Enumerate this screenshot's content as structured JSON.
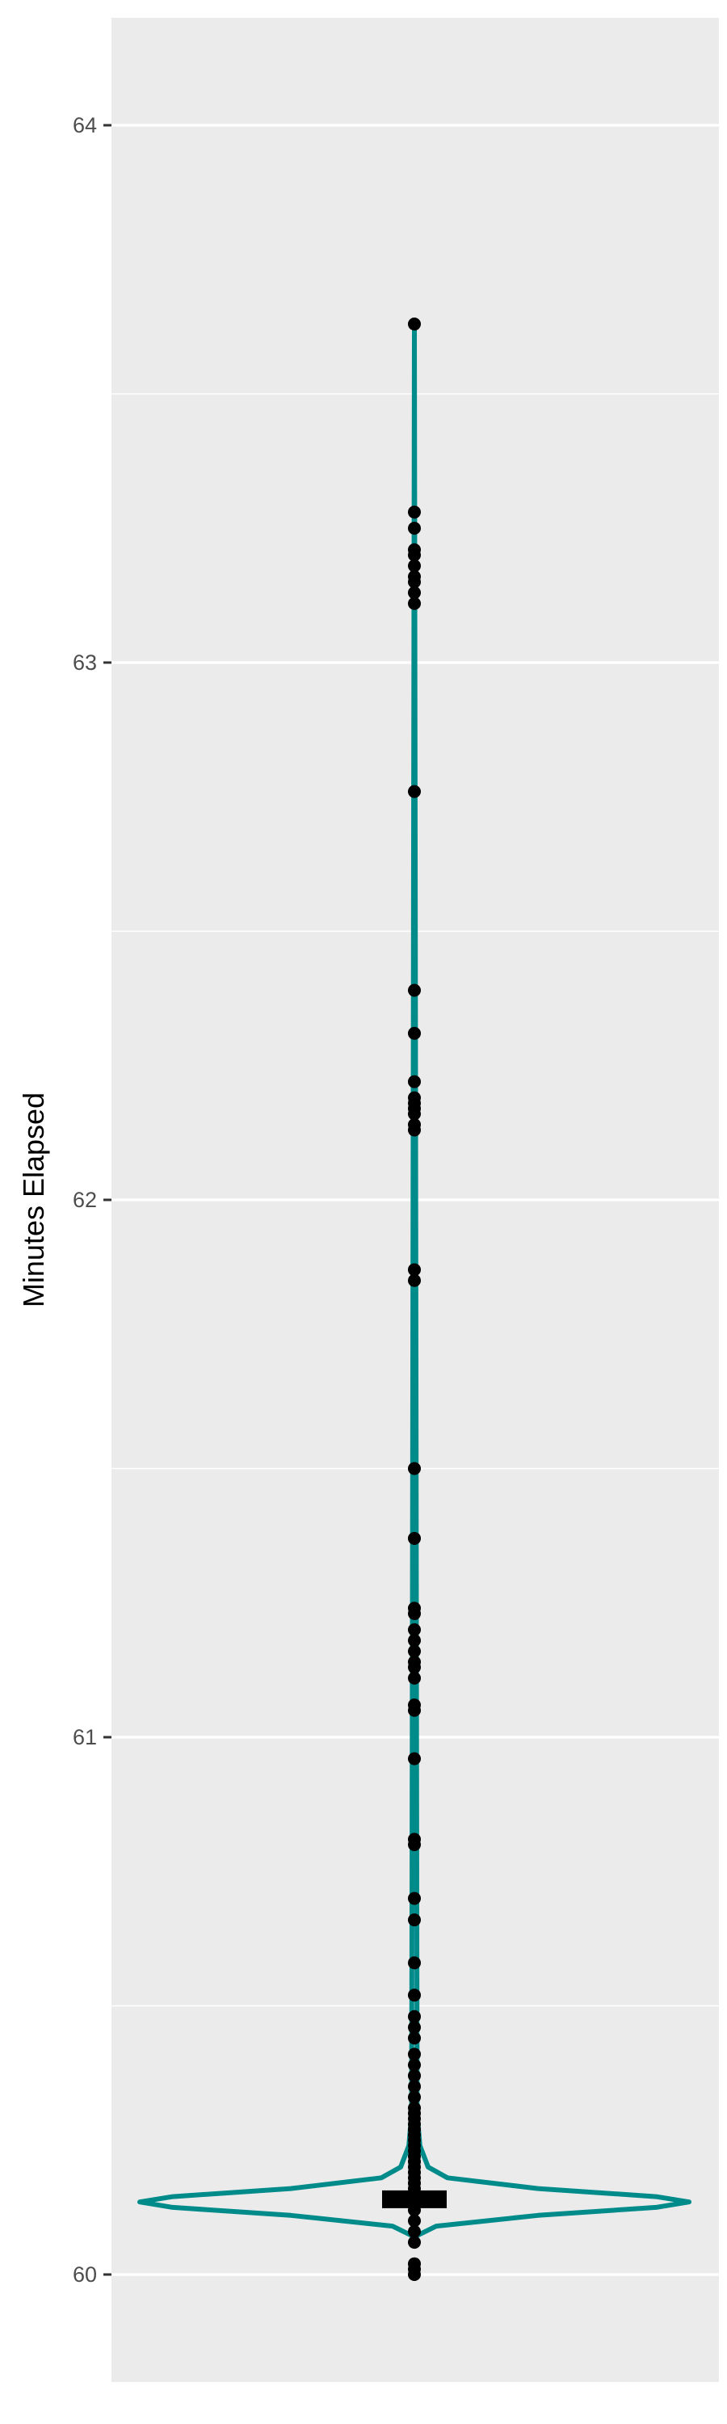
{
  "chart_data": {
    "type": "violin",
    "title": "",
    "xlabel": "",
    "ylabel": "Minutes Elapsed",
    "ylim": [
      59.8,
      64.2
    ],
    "yticks": [
      60,
      61,
      62,
      63,
      64
    ],
    "ytick_labels": [
      "60",
      "61",
      "62",
      "63",
      "64"
    ],
    "grid": true,
    "colors": {
      "panel_bg": "#ebebeb",
      "grid": "#ffffff",
      "violin": "#008b8b",
      "points": "#000000",
      "median_bar": "#000000"
    },
    "violin_density": [
      [
        60.07,
        0.0
      ],
      [
        60.09,
        0.08
      ],
      [
        60.11,
        0.45
      ],
      [
        60.125,
        0.88
      ],
      [
        60.135,
        1.0
      ],
      [
        60.145,
        0.88
      ],
      [
        60.16,
        0.45
      ],
      [
        60.18,
        0.12
      ],
      [
        60.2,
        0.05
      ],
      [
        60.24,
        0.02
      ],
      [
        60.3,
        0.01
      ],
      [
        63.63,
        0.0
      ]
    ],
    "median": 60.14,
    "points": [
      60.0,
      60.01,
      60.02,
      60.06,
      60.08,
      60.1,
      60.12,
      60.13,
      60.14,
      60.15,
      60.16,
      60.17,
      60.18,
      60.19,
      60.2,
      60.21,
      60.22,
      60.23,
      60.24,
      60.25,
      60.26,
      60.27,
      60.28,
      60.29,
      60.3,
      60.31,
      60.33,
      60.35,
      60.37,
      60.39,
      60.41,
      60.44,
      60.46,
      60.48,
      60.52,
      60.58,
      60.66,
      60.7,
      60.8,
      60.81,
      60.96,
      61.05,
      61.06,
      61.11,
      61.13,
      61.14,
      61.16,
      61.18,
      61.2,
      61.23,
      61.24,
      61.37,
      61.5,
      61.85,
      61.87,
      62.13,
      62.14,
      62.16,
      62.17,
      62.18,
      62.19,
      62.22,
      62.31,
      62.39,
      62.76,
      63.11,
      63.13,
      63.15,
      63.16,
      63.18,
      63.2,
      63.21,
      63.25,
      63.28,
      63.63
    ]
  }
}
